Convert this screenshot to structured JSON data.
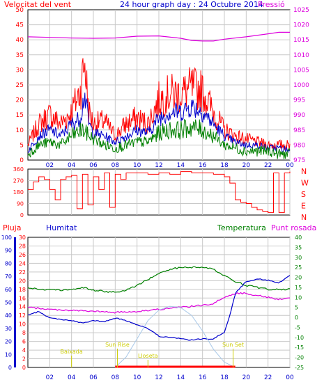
{
  "title": "24 hour graph day : 24 Octubre 2014",
  "colors": {
    "red": "#ff0000",
    "blue": "#0000cc",
    "green": "#008000",
    "magenta": "#dd00dd",
    "light_blue": "#a8c8e8",
    "yellow": "#cccc00",
    "grid": "#c8c8c8"
  },
  "time_ticks": [
    "02",
    "04",
    "06",
    "08",
    "10",
    "12",
    "14",
    "16",
    "18",
    "20",
    "22",
    "00"
  ],
  "chart_data": [
    {
      "type": "line",
      "name": "wind",
      "title": "24 hour graph day : 24 Octubre 2014",
      "left_label": "Velocitat del vent",
      "right_label": "Pressió",
      "left_axis": {
        "range": [
          0,
          50
        ],
        "ticks": [
          "0",
          "5",
          "10",
          "15",
          "20",
          "25",
          "30",
          "35",
          "40",
          "45",
          "50"
        ]
      },
      "right_axis": {
        "range": [
          975,
          1025
        ],
        "ticks": [
          "975",
          "980",
          "985",
          "990",
          "995",
          "1000",
          "1005",
          "1010",
          "1015",
          "1020",
          "1025"
        ]
      },
      "series": [
        {
          "role": "gust",
          "color": "red",
          "x": [
            0,
            1,
            2,
            3,
            4,
            4.8,
            5.2,
            5.6,
            6,
            7,
            8,
            9,
            10,
            11,
            12,
            13,
            14,
            15,
            16,
            17,
            18,
            19,
            20,
            21,
            22,
            23,
            24
          ],
          "y": [
            5,
            12,
            15,
            12,
            16,
            23,
            33,
            16,
            12,
            13,
            8,
            12,
            14,
            12,
            20,
            22,
            22,
            24,
            23,
            16,
            10,
            8,
            7,
            6,
            5,
            5,
            5
          ]
        },
        {
          "role": "wind speed",
          "color": "blue",
          "x": [
            0,
            1,
            2,
            3,
            4,
            4.8,
            5.2,
            5.6,
            6,
            7,
            8,
            9,
            10,
            11,
            12,
            13,
            14,
            15,
            16,
            17,
            18,
            19,
            20,
            21,
            22,
            23,
            24
          ],
          "y": [
            3,
            8,
            10,
            8,
            12,
            14,
            22,
            12,
            9,
            8,
            6,
            8,
            10,
            9,
            14,
            16,
            16,
            18,
            16,
            12,
            8,
            6,
            5,
            5,
            4,
            4,
            3
          ]
        },
        {
          "role": "average",
          "color": "green",
          "x": [
            0,
            1,
            2,
            3,
            4,
            5,
            6,
            7,
            8,
            9,
            10,
            11,
            12,
            13,
            14,
            15,
            16,
            17,
            18,
            19,
            20,
            21,
            22,
            23,
            24
          ],
          "y": [
            2,
            5,
            6,
            5,
            8,
            10,
            7,
            5,
            4,
            5,
            6,
            6,
            9,
            10,
            10,
            11,
            10,
            8,
            5,
            4,
            3,
            3,
            3,
            2,
            2
          ]
        },
        {
          "role": "pressure",
          "color": "magenta",
          "axis": "right",
          "x": [
            0,
            2,
            4,
            6,
            8,
            10,
            12,
            14,
            15,
            16,
            17,
            18,
            20,
            22,
            23,
            24
          ],
          "y": [
            1016,
            1015.8,
            1015.6,
            1015.5,
            1015.6,
            1016.2,
            1016.3,
            1015.5,
            1014.8,
            1014.6,
            1014.6,
            1015.2,
            1016,
            1017,
            1017.5,
            1017.5
          ]
        }
      ]
    },
    {
      "type": "line",
      "name": "wind-direction",
      "left_axis": {
        "range": [
          0,
          360
        ],
        "ticks": [
          "0",
          "90",
          "180",
          "270",
          "360"
        ]
      },
      "right_labels": [
        "N",
        "W",
        "S",
        "E",
        "N"
      ],
      "series": [
        {
          "role": "direction",
          "color": "red",
          "x": [
            0,
            0.5,
            1,
            1.5,
            2,
            2.5,
            3,
            3.5,
            4,
            4.5,
            5,
            5.5,
            6,
            6.5,
            7,
            7.5,
            8,
            8.5,
            9,
            10,
            11,
            12,
            13,
            14,
            15,
            16,
            17,
            18,
            18.5,
            19,
            19.5,
            20,
            20.5,
            21,
            21.5,
            22,
            22.5,
            23,
            23.5,
            24
          ],
          "y": [
            200,
            260,
            300,
            280,
            200,
            120,
            280,
            300,
            310,
            50,
            320,
            80,
            300,
            200,
            330,
            60,
            320,
            280,
            330,
            330,
            320,
            330,
            320,
            340,
            330,
            330,
            320,
            300,
            250,
            120,
            100,
            90,
            60,
            40,
            30,
            20,
            330,
            20,
            330,
            340
          ]
        }
      ]
    },
    {
      "type": "line",
      "name": "climate",
      "labels": {
        "rain": "Pluja",
        "humidity": "Humitat",
        "temperature": "Temperatura",
        "dewpoint": "Punt rosada"
      },
      "humidity_axis": {
        "range": [
          0,
          100
        ],
        "ticks": [
          "0",
          "10",
          "20",
          "30",
          "40",
          "50",
          "60",
          "70",
          "80",
          "90",
          "100"
        ]
      },
      "rain_axis": {
        "range": [
          0,
          30
        ],
        "ticks": [
          "0",
          "2",
          "4",
          "6",
          "8",
          "10",
          "12",
          "14",
          "16",
          "18",
          "20",
          "22",
          "24",
          "26",
          "28",
          "30"
        ]
      },
      "temperature_axis": {
        "range": [
          -25,
          40
        ],
        "ticks": [
          "-25",
          "-20",
          "-15",
          "-10",
          "-5",
          "0",
          "5",
          "10",
          "15",
          "20",
          "25",
          "30",
          "35",
          "40"
        ]
      },
      "annotations": [
        "Baixada",
        "Sun Rise",
        "Lloseta",
        "Sun Set"
      ],
      "series": [
        {
          "role": "temperature",
          "color": "green",
          "axis": "temperature",
          "x": [
            0,
            1,
            2,
            3,
            4,
            5,
            6,
            7,
            8,
            9,
            10,
            11,
            12,
            13,
            14,
            15,
            16,
            17,
            18,
            19,
            20,
            21,
            22,
            23,
            24
          ],
          "y": [
            15,
            14,
            14,
            13.5,
            14,
            15,
            13.5,
            13,
            12.5,
            13.5,
            16,
            19,
            22,
            24,
            25,
            25,
            25,
            24,
            21,
            18,
            16,
            15,
            14,
            14,
            14
          ]
        },
        {
          "role": "dewpoint",
          "color": "magenta",
          "axis": "temperature",
          "x": [
            0,
            2,
            4,
            6,
            8,
            10,
            12,
            14,
            15,
            16,
            17,
            18,
            19,
            20,
            21,
            22,
            23,
            24
          ],
          "y": [
            5,
            4,
            3.5,
            3,
            2.5,
            3,
            4,
            5,
            5.5,
            6,
            7,
            10,
            12,
            12,
            11,
            10,
            9,
            10
          ]
        },
        {
          "role": "humidity",
          "color": "blue",
          "axis": "humidity",
          "x": [
            0,
            1,
            2,
            3,
            4,
            5,
            6,
            7,
            8,
            9,
            10,
            11,
            12,
            13,
            14,
            15,
            16,
            17,
            18,
            18.5,
            19,
            20,
            21,
            22,
            23,
            24
          ],
          "y": [
            40,
            43,
            38,
            37,
            36,
            34,
            36,
            35,
            38,
            36,
            33,
            30,
            24,
            23,
            22,
            21,
            22,
            22,
            27,
            40,
            57,
            66,
            68,
            67,
            65,
            71
          ]
        },
        {
          "role": "solar",
          "color": "light_blue",
          "axis": "humidity",
          "x": [
            8,
            9,
            10,
            11,
            12,
            13,
            14,
            15,
            16,
            17,
            18,
            19
          ],
          "y": [
            0,
            8,
            22,
            36,
            44,
            47,
            46,
            40,
            28,
            14,
            4,
            0
          ]
        }
      ]
    }
  ]
}
